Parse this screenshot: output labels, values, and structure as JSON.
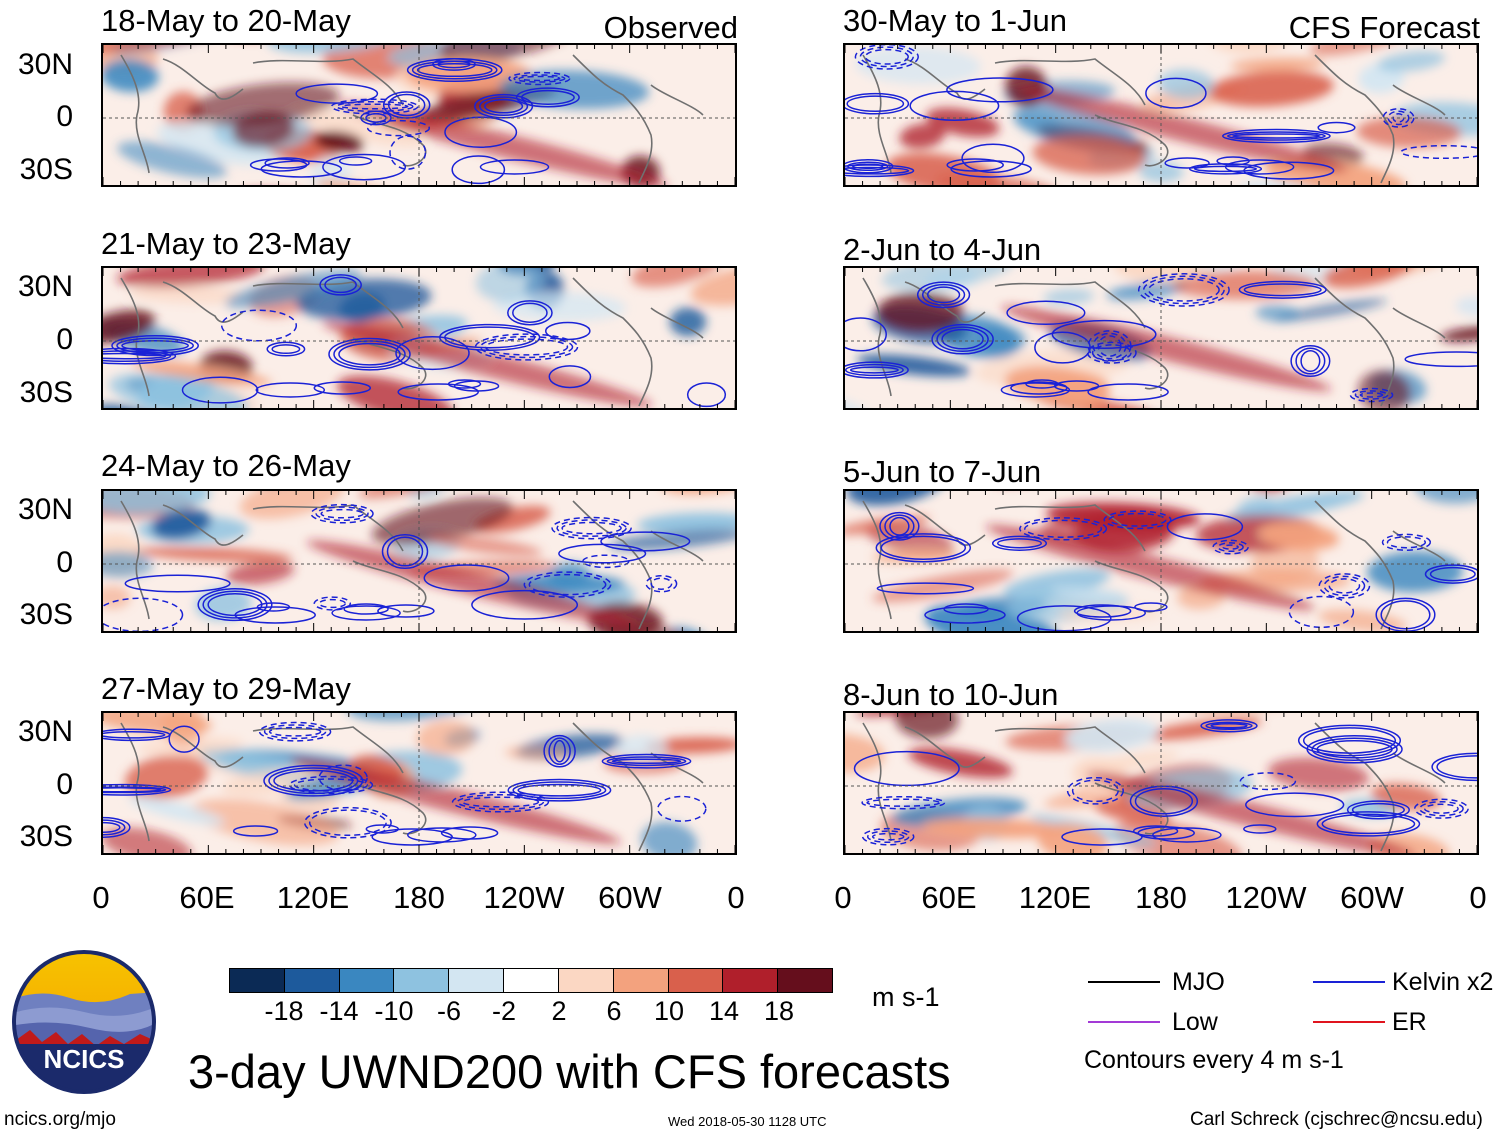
{
  "left_column_label": "Observed",
  "right_column_label": "CFS Forecast",
  "panels_left": [
    {
      "title": "18-May to 20-May"
    },
    {
      "title": "21-May to 23-May"
    },
    {
      "title": "24-May to 26-May"
    },
    {
      "title": "27-May to 29-May"
    }
  ],
  "panels_right": [
    {
      "title": "30-May to 1-Jun"
    },
    {
      "title": "2-Jun to 4-Jun"
    },
    {
      "title": "5-Jun to 7-Jun"
    },
    {
      "title": "8-Jun to 10-Jun"
    }
  ],
  "lat_labels": [
    "30N",
    "0",
    "30S"
  ],
  "lon_labels": [
    "0",
    "60E",
    "120E",
    "180",
    "120W",
    "60W",
    "0"
  ],
  "colorbar": {
    "colors": [
      "#0b2a55",
      "#1d5a9c",
      "#3a87c0",
      "#8ec2e0",
      "#d3e6f2",
      "#ffffff",
      "#fbd7c3",
      "#f3a27e",
      "#d9604c",
      "#b01f2b",
      "#650e1c"
    ],
    "tick_labels": [
      "-18",
      "-14",
      "-10",
      "-6",
      "-2",
      "2",
      "6",
      "10",
      "14",
      "18"
    ],
    "units": "m s-1"
  },
  "legend": {
    "items": [
      {
        "label": "MJO",
        "color": "#000000"
      },
      {
        "label": "Kelvin x2",
        "color": "#1a22d6"
      },
      {
        "label": "Low",
        "color": "#a33ad6"
      },
      {
        "label": "ER",
        "color": "#e0141e"
      }
    ],
    "contour_note": "Contours every 4 m s-1"
  },
  "logo": {
    "text": "NCICS",
    "colors": {
      "sky": "#f2b400",
      "ring": "#1b2a6b",
      "hills": "#5a6bb0"
    }
  },
  "main_title": "3-day UWND200 with CFS forecasts",
  "footer": {
    "url": "ncics.org/mjo",
    "timestamp": "Wed 2018-05-30 1128 UTC",
    "author": "Carl Schreck (cjschrec@ncsu.edu)"
  }
}
